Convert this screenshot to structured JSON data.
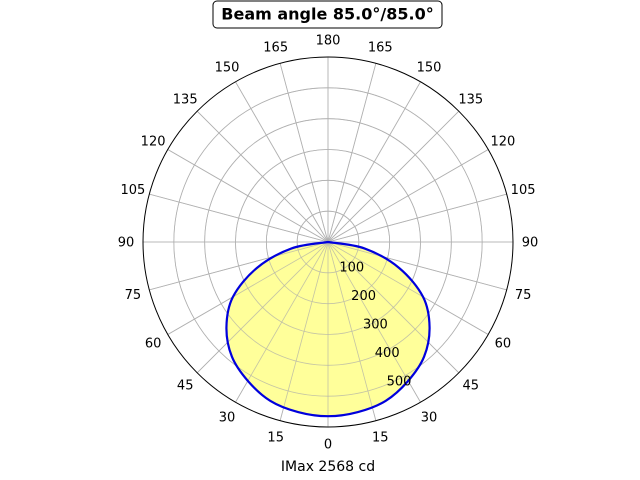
{
  "chart_data": {
    "type": "polar",
    "title": "Beam angle 85.0°/85.0°",
    "xlabel": "IMax 2568 cd",
    "angle_tick_labels": [
      "0",
      "15",
      "30",
      "45",
      "60",
      "75",
      "90",
      "105",
      "120",
      "135",
      "150",
      "165",
      "180",
      "165",
      "150",
      "135",
      "120",
      "105",
      "90",
      "75",
      "60",
      "45",
      "30",
      "15"
    ],
    "radial_ticks": [
      100,
      200,
      300,
      400,
      500
    ],
    "rlim": [
      0,
      600
    ],
    "grid": true,
    "fill_color": "#ffff88",
    "line_color": "#0000dd",
    "series": [
      {
        "angles": [
          0,
          10,
          20,
          30,
          40,
          50,
          60,
          70,
          80,
          90
        ],
        "values": [
          565,
          560,
          548,
          520,
          485,
          430,
          356,
          245,
          120,
          0
        ]
      }
    ]
  }
}
